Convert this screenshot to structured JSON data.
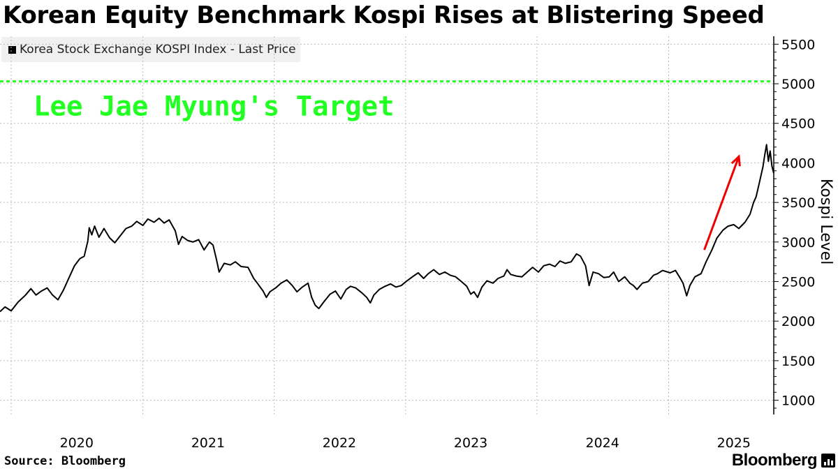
{
  "header": {
    "title": "Korean Equity Benchmark Kospi Rises at Blistering Speed"
  },
  "footer": {
    "source": "Source: Bloomberg",
    "brand": "Bloomberg"
  },
  "colors": {
    "line": "#000000",
    "target": "#22ff22",
    "arrow": "#ee0000",
    "grid": "#bbbbbb"
  },
  "chart_data": {
    "type": "line",
    "title": "Korean Equity Benchmark Kospi Rises at Blistering Speed",
    "ylabel": "Kospi Level",
    "xlabel": "",
    "legend": {
      "label": "Korea Stock Exchange KOSPI Index - Last Price",
      "position": "top-left"
    },
    "ylim": [
      820,
      5600
    ],
    "y_ticks": [
      1000,
      1500,
      2000,
      2500,
      3000,
      3500,
      4000,
      4500,
      5000,
      5500
    ],
    "y_axis_position": "right",
    "xlim": [
      "2019-12-01",
      "2025-10-20"
    ],
    "x_ticks": [
      {
        "date": "2020-07-01",
        "label": "2020"
      },
      {
        "date": "2021-07-01",
        "label": "2021"
      },
      {
        "date": "2022-07-01",
        "label": "2022"
      },
      {
        "date": "2023-07-01",
        "label": "2023"
      },
      {
        "date": "2024-07-01",
        "label": "2024"
      },
      {
        "date": "2025-07-01",
        "label": "2025"
      }
    ],
    "x_gridlines": [
      "2020-01-01",
      "2021-01-01",
      "2022-01-01",
      "2023-01-01",
      "2024-01-01",
      "2025-01-01"
    ],
    "grid": true,
    "reference_line": {
      "value": 5030,
      "label": "Lee Jae Myung's Target",
      "style": "dashed"
    },
    "annotation_arrow": {
      "from": [
        "2025-04-10",
        2900
      ],
      "to": [
        "2025-07-15",
        4080
      ]
    },
    "series": [
      {
        "name": "Korea Stock Exchange KOSPI Index - Last Price",
        "points": [
          [
            "2019-12-01",
            2120
          ],
          [
            "2019-12-15",
            2180
          ],
          [
            "2020-01-01",
            2130
          ],
          [
            "2020-01-20",
            2240
          ],
          [
            "2020-02-10",
            2330
          ],
          [
            "2020-02-25",
            2410
          ],
          [
            "2020-03-10",
            2330
          ],
          [
            "2020-03-25",
            2380
          ],
          [
            "2020-04-10",
            2420
          ],
          [
            "2020-04-25",
            2330
          ],
          [
            "2020-05-10",
            2270
          ],
          [
            "2020-05-25",
            2390
          ],
          [
            "2020-06-10",
            2550
          ],
          [
            "2020-06-25",
            2700
          ],
          [
            "2020-07-10",
            2790
          ],
          [
            "2020-07-22",
            2820
          ],
          [
            "2020-08-01",
            3010
          ],
          [
            "2020-08-05",
            3180
          ],
          [
            "2020-08-12",
            3090
          ],
          [
            "2020-08-20",
            3200
          ],
          [
            "2020-09-01",
            3060
          ],
          [
            "2020-09-15",
            3170
          ],
          [
            "2020-10-01",
            3050
          ],
          [
            "2020-10-15",
            2990
          ],
          [
            "2020-11-01",
            3090
          ],
          [
            "2020-11-15",
            3170
          ],
          [
            "2020-12-01",
            3200
          ],
          [
            "2020-12-15",
            3260
          ],
          [
            "2021-01-01",
            3210
          ],
          [
            "2021-01-15",
            3290
          ],
          [
            "2021-02-01",
            3250
          ],
          [
            "2021-02-15",
            3300
          ],
          [
            "2021-03-01",
            3240
          ],
          [
            "2021-03-15",
            3280
          ],
          [
            "2021-04-01",
            3140
          ],
          [
            "2021-04-10",
            2970
          ],
          [
            "2021-04-20",
            3070
          ],
          [
            "2021-05-05",
            3020
          ],
          [
            "2021-05-20",
            3000
          ],
          [
            "2021-06-05",
            3030
          ],
          [
            "2021-06-20",
            2900
          ],
          [
            "2021-07-05",
            3000
          ],
          [
            "2021-07-15",
            2960
          ],
          [
            "2021-07-25",
            2770
          ],
          [
            "2021-08-01",
            2620
          ],
          [
            "2021-08-15",
            2730
          ],
          [
            "2021-09-01",
            2710
          ],
          [
            "2021-09-15",
            2750
          ],
          [
            "2021-10-01",
            2690
          ],
          [
            "2021-10-20",
            2680
          ],
          [
            "2021-11-05",
            2540
          ],
          [
            "2021-11-15",
            2480
          ],
          [
            "2021-12-01",
            2380
          ],
          [
            "2021-12-10",
            2300
          ],
          [
            "2021-12-20",
            2370
          ],
          [
            "2022-01-05",
            2420
          ],
          [
            "2022-01-20",
            2480
          ],
          [
            "2022-02-05",
            2520
          ],
          [
            "2022-02-20",
            2450
          ],
          [
            "2022-03-05",
            2370
          ],
          [
            "2022-03-20",
            2430
          ],
          [
            "2022-04-05",
            2480
          ],
          [
            "2022-04-15",
            2300
          ],
          [
            "2022-04-25",
            2200
          ],
          [
            "2022-05-05",
            2160
          ],
          [
            "2022-05-20",
            2250
          ],
          [
            "2022-06-05",
            2340
          ],
          [
            "2022-06-20",
            2380
          ],
          [
            "2022-07-05",
            2280
          ],
          [
            "2022-07-20",
            2400
          ],
          [
            "2022-08-01",
            2440
          ],
          [
            "2022-08-15",
            2420
          ],
          [
            "2022-09-01",
            2360
          ],
          [
            "2022-09-15",
            2300
          ],
          [
            "2022-09-25",
            2230
          ],
          [
            "2022-10-05",
            2330
          ],
          [
            "2022-10-20",
            2400
          ],
          [
            "2022-11-05",
            2440
          ],
          [
            "2022-11-20",
            2470
          ],
          [
            "2022-12-05",
            2430
          ],
          [
            "2022-12-20",
            2450
          ],
          [
            "2023-01-05",
            2510
          ],
          [
            "2023-01-20",
            2560
          ],
          [
            "2023-02-05",
            2610
          ],
          [
            "2023-02-20",
            2540
          ],
          [
            "2023-03-05",
            2600
          ],
          [
            "2023-03-20",
            2650
          ],
          [
            "2023-04-05",
            2590
          ],
          [
            "2023-04-20",
            2620
          ],
          [
            "2023-05-05",
            2580
          ],
          [
            "2023-05-20",
            2560
          ],
          [
            "2023-06-05",
            2500
          ],
          [
            "2023-06-20",
            2440
          ],
          [
            "2023-07-01",
            2340
          ],
          [
            "2023-07-10",
            2370
          ],
          [
            "2023-07-20",
            2300
          ],
          [
            "2023-08-01",
            2430
          ],
          [
            "2023-08-15",
            2510
          ],
          [
            "2023-09-01",
            2480
          ],
          [
            "2023-09-15",
            2540
          ],
          [
            "2023-10-01",
            2570
          ],
          [
            "2023-10-10",
            2650
          ],
          [
            "2023-10-20",
            2590
          ],
          [
            "2023-11-05",
            2570
          ],
          [
            "2023-11-20",
            2560
          ],
          [
            "2023-12-05",
            2620
          ],
          [
            "2023-12-20",
            2680
          ],
          [
            "2024-01-05",
            2620
          ],
          [
            "2024-01-20",
            2700
          ],
          [
            "2024-02-05",
            2720
          ],
          [
            "2024-02-20",
            2690
          ],
          [
            "2024-03-05",
            2760
          ],
          [
            "2024-03-20",
            2730
          ],
          [
            "2024-04-05",
            2750
          ],
          [
            "2024-04-20",
            2850
          ],
          [
            "2024-05-01",
            2820
          ],
          [
            "2024-05-15",
            2700
          ],
          [
            "2024-05-25",
            2450
          ],
          [
            "2024-06-05",
            2620
          ],
          [
            "2024-06-20",
            2600
          ],
          [
            "2024-07-05",
            2550
          ],
          [
            "2024-07-20",
            2560
          ],
          [
            "2024-08-01",
            2620
          ],
          [
            "2024-08-15",
            2500
          ],
          [
            "2024-09-01",
            2560
          ],
          [
            "2024-09-15",
            2480
          ],
          [
            "2024-09-25",
            2450
          ],
          [
            "2024-10-05",
            2400
          ],
          [
            "2024-10-20",
            2480
          ],
          [
            "2024-11-05",
            2500
          ],
          [
            "2024-11-20",
            2580
          ],
          [
            "2024-12-01",
            2600
          ],
          [
            "2024-12-15",
            2640
          ],
          [
            "2025-01-05",
            2610
          ],
          [
            "2025-01-20",
            2640
          ],
          [
            "2025-02-01",
            2550
          ],
          [
            "2025-02-10",
            2480
          ],
          [
            "2025-02-20",
            2320
          ],
          [
            "2025-03-01",
            2450
          ],
          [
            "2025-03-15",
            2560
          ],
          [
            "2025-04-01",
            2600
          ],
          [
            "2025-04-15",
            2750
          ],
          [
            "2025-05-01",
            2900
          ],
          [
            "2025-05-15",
            3050
          ],
          [
            "2025-06-01",
            3150
          ],
          [
            "2025-06-15",
            3200
          ],
          [
            "2025-07-01",
            3220
          ],
          [
            "2025-07-15",
            3170
          ],
          [
            "2025-08-01",
            3250
          ],
          [
            "2025-08-15",
            3350
          ],
          [
            "2025-08-25",
            3500
          ],
          [
            "2025-09-01",
            3570
          ],
          [
            "2025-09-10",
            3750
          ],
          [
            "2025-09-20",
            3950
          ],
          [
            "2025-09-25",
            4100
          ],
          [
            "2025-09-30",
            4230
          ],
          [
            "2025-10-05",
            4020
          ],
          [
            "2025-10-10",
            4150
          ],
          [
            "2025-10-15",
            3960
          ],
          [
            "2025-10-20",
            3870
          ]
        ]
      }
    ]
  }
}
